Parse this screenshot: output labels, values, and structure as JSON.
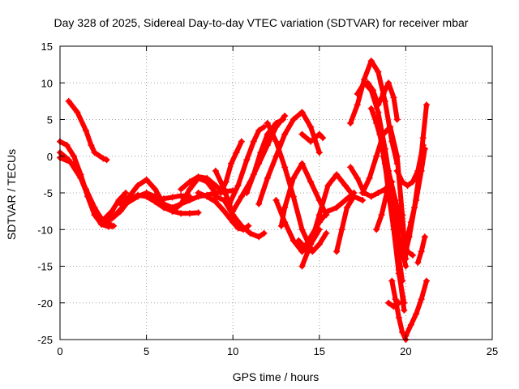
{
  "chart_data": {
    "type": "scatter",
    "title": "Day 328 of 2025, Sidereal Day-to-day VTEC variation (SDTVAR) for receiver mbar",
    "xlabel": "GPS time / hours",
    "ylabel": "SDTVAR / TECUs",
    "xlim": [
      0,
      25
    ],
    "ylim": [
      -25,
      15
    ],
    "xticks": [
      0,
      5,
      10,
      15,
      20,
      25
    ],
    "yticks": [
      -25,
      -20,
      -15,
      -10,
      -5,
      0,
      5,
      10,
      15
    ],
    "xtick_labels": [
      "0",
      "5",
      "10",
      "15",
      "20",
      "25"
    ],
    "ytick_labels": [
      "-25",
      "-20",
      "-15",
      "-10",
      "-5",
      "0",
      "5",
      "10",
      "15"
    ],
    "grid": true,
    "legend": "none",
    "color": "#ff0000",
    "marker": "plus",
    "series": [
      {
        "x": [
          0.5,
          1.0,
          1.5,
          1.8,
          2.0,
          2.5,
          2.7
        ],
        "y": [
          7.5,
          6.0,
          3.5,
          1.5,
          0.5,
          -0.3,
          -0.5
        ]
      },
      {
        "x": [
          0.0,
          0.4,
          0.8,
          1.2,
          1.6,
          2.0,
          2.4,
          2.8,
          3.1
        ],
        "y": [
          2.0,
          1.5,
          0.0,
          -2.5,
          -5.5,
          -8.0,
          -9.3,
          -9.6,
          -9.5
        ]
      },
      {
        "x": [
          0.0,
          0.5,
          1.0,
          1.5,
          2.0,
          2.5,
          3.0
        ],
        "y": [
          0.5,
          -0.5,
          -2.0,
          -4.5,
          -7.0,
          -9.0,
          -9.5
        ]
      },
      {
        "x": [
          0.0,
          0.6,
          1.2,
          1.8,
          2.4,
          2.8
        ],
        "y": [
          -0.2,
          -0.8,
          -3.0,
          -6.5,
          -8.5,
          -9.0
        ]
      },
      {
        "x": [
          2.6,
          3.0,
          3.5,
          4.0,
          4.5,
          5.0,
          5.5,
          6.0,
          6.5,
          7.0,
          7.5,
          8.0
        ],
        "y": [
          -8.5,
          -8.5,
          -7.5,
          -6.0,
          -5.3,
          -5.5,
          -6.2,
          -7.0,
          -7.5,
          -7.8,
          -7.8,
          -7.7
        ]
      },
      {
        "x": [
          2.0,
          2.5,
          3.0,
          3.4,
          3.8
        ],
        "y": [
          -8.0,
          -8.7,
          -7.5,
          -6.0,
          -5.0
        ]
      },
      {
        "x": [
          2.6,
          3.2,
          3.8,
          4.5,
          5.0,
          5.5,
          6.0,
          6.5,
          7.0
        ],
        "y": [
          -9.0,
          -8.0,
          -6.5,
          -5.5,
          -5.0,
          -5.5,
          -6.5,
          -7.0,
          -6.5
        ]
      },
      {
        "x": [
          3.5,
          4.0,
          4.5,
          5.0,
          5.5,
          6.0,
          6.5,
          7.0,
          7.5,
          8.0,
          8.5,
          9.0
        ],
        "y": [
          -6.5,
          -5.5,
          -4.0,
          -3.2,
          -4.5,
          -6.5,
          -7.5,
          -6.5,
          -4.5,
          -3.0,
          -3.5,
          -5.0
        ]
      },
      {
        "x": [
          6.5,
          7.0,
          7.5,
          8.0,
          8.5,
          9.0,
          9.5,
          10.0
        ],
        "y": [
          -7.5,
          -6.5,
          -6.0,
          -5.5,
          -5.3,
          -5.0,
          -4.8,
          -4.7
        ]
      },
      {
        "x": [
          5.5,
          6.0,
          6.5,
          7.0,
          7.5
        ],
        "y": [
          -6.0,
          -5.8,
          -5.6,
          -5.4,
          -5.5
        ]
      },
      {
        "x": [
          8.0,
          8.5,
          9.0,
          9.5,
          10.0,
          10.3,
          10.6,
          10.9
        ],
        "y": [
          -5.0,
          -5.5,
          -6.2,
          -7.5,
          -9.0,
          -9.8,
          -10.0,
          -9.5
        ]
      },
      {
        "x": [
          9.0,
          9.5,
          10.0,
          10.5,
          11.0,
          11.5,
          11.8
        ],
        "y": [
          -5.5,
          -6.0,
          -8.0,
          -9.5,
          -10.5,
          -11.0,
          -10.5
        ]
      },
      {
        "x": [
          9.0,
          9.5,
          10.0,
          10.4
        ],
        "y": [
          -2.0,
          -4.5,
          -8.0,
          -9.5
        ]
      },
      {
        "x": [
          9.3,
          9.6,
          9.9,
          10.2,
          10.5
        ],
        "y": [
          -5.0,
          -3.5,
          -1.0,
          0.5,
          2.0
        ]
      },
      {
        "x": [
          9.8,
          10.3,
          10.8,
          11.2,
          11.5,
          11.8
        ],
        "y": [
          -6.5,
          -4.0,
          -0.5,
          2.0,
          3.5,
          4.0
        ]
      },
      {
        "x": [
          10.8,
          11.2,
          11.6,
          12.0,
          12.5,
          12.9
        ],
        "y": [
          -5.0,
          -2.5,
          0.5,
          3.0,
          4.5,
          5.0
        ]
      },
      {
        "x": [
          11.5,
          12.0,
          12.5,
          13.0,
          13.5,
          14.0,
          14.5,
          15.0
        ],
        "y": [
          -6.5,
          -3.0,
          0.0,
          3.0,
          5.0,
          6.0,
          4.0,
          0.5
        ]
      },
      {
        "x": [
          10.0,
          10.5,
          11.0,
          11.5,
          12.0,
          12.5,
          13.0
        ],
        "y": [
          -7.5,
          -5.5,
          -3.5,
          -1.0,
          1.5,
          4.0,
          5.5
        ]
      },
      {
        "x": [
          12.0,
          12.5,
          13.0,
          13.5,
          14.0,
          14.5
        ],
        "y": [
          4.5,
          2.0,
          -1.5,
          -5.5,
          -10.0,
          -12.5
        ]
      },
      {
        "x": [
          12.8,
          13.0,
          13.5,
          14.0,
          14.5,
          15.0,
          15.4
        ],
        "y": [
          -9.5,
          -7.0,
          -3.0,
          -1.0,
          -3.5,
          -6.0,
          -8.0
        ]
      },
      {
        "x": [
          12.5,
          13.0,
          13.5,
          14.0,
          14.5,
          15.0
        ],
        "y": [
          -6.0,
          -9.0,
          -11.5,
          -13.0,
          -12.0,
          -10.0
        ]
      },
      {
        "x": [
          13.8,
          14.2,
          14.6,
          15.0,
          15.4
        ],
        "y": [
          -11.5,
          -12.5,
          -13.0,
          -12.0,
          -10.5
        ]
      },
      {
        "x": [
          14.0,
          14.5,
          15.0,
          15.5,
          16.0,
          16.5,
          17.0
        ],
        "y": [
          -13.0,
          -11.0,
          -9.0,
          -7.5,
          -7.0,
          -6.0,
          -5.0
        ]
      },
      {
        "x": [
          14.0,
          14.5,
          15.0,
          15.2
        ],
        "y": [
          3.0,
          2.0,
          3.0,
          2.5
        ]
      },
      {
        "x": [
          14.0,
          14.5,
          15.0,
          15.5,
          16.0,
          16.5,
          17.0,
          17.5
        ],
        "y": [
          -15.0,
          -12.0,
          -8.0,
          -4.0,
          -2.5,
          -4.0,
          -5.5,
          -6.0
        ]
      },
      {
        "x": [
          16.0,
          16.3,
          16.6,
          17.0
        ],
        "y": [
          -13.0,
          -10.0,
          -7.0,
          -5.5
        ]
      },
      {
        "x": [
          16.8,
          17.2,
          17.6,
          18.0,
          18.4,
          18.8,
          19.2
        ],
        "y": [
          -1.5,
          -3.0,
          -5.0,
          -5.5,
          -5.0,
          -4.5,
          -3.5
        ]
      },
      {
        "x": [
          16.8,
          17.2,
          17.6,
          18.0,
          18.4,
          18.8,
          19.2,
          19.5
        ],
        "y": [
          4.5,
          7.0,
          10.5,
          13.0,
          11.5,
          7.5,
          2.0,
          -1.0
        ]
      },
      {
        "x": [
          17.8,
          18.1,
          18.4,
          18.7,
          19.0,
          19.3,
          19.5
        ],
        "y": [
          10.0,
          9.0,
          7.0,
          8.5,
          10.0,
          8.0,
          5.0
        ]
      },
      {
        "x": [
          17.2,
          17.6,
          18.0,
          18.4,
          18.8,
          19.2,
          19.6,
          20.0
        ],
        "y": [
          8.5,
          10.0,
          9.0,
          6.0,
          1.0,
          -5.0,
          -11.0,
          -15.0
        ]
      },
      {
        "x": [
          17.5,
          17.9,
          18.3,
          18.7,
          19.1,
          19.5,
          19.8,
          20.0
        ],
        "y": [
          -5.0,
          -3.0,
          0.0,
          3.0,
          4.0,
          0.0,
          -8.0,
          -14.0
        ]
      },
      {
        "x": [
          18.0,
          18.3,
          18.6,
          19.0,
          19.4,
          19.8,
          20.1,
          20.4
        ],
        "y": [
          6.5,
          4.5,
          2.0,
          -2.0,
          -6.0,
          -10.0,
          -13.0,
          -13.5
        ]
      },
      {
        "x": [
          18.3,
          18.6,
          18.9,
          19.2,
          19.5,
          19.8
        ],
        "y": [
          -10.0,
          -8.0,
          -5.0,
          -6.0,
          -12.0,
          -17.0
        ]
      },
      {
        "x": [
          18.5,
          18.8,
          19.0,
          19.3,
          19.6,
          19.9
        ],
        "y": [
          3.0,
          -1.0,
          -5.0,
          -10.0,
          -16.0,
          -20.0
        ]
      },
      {
        "x": [
          18.7,
          19.0,
          19.3,
          19.6,
          19.9
        ],
        "y": [
          0.0,
          -4.0,
          -9.5,
          -15.5,
          -21.0
        ]
      },
      {
        "x": [
          19.0,
          19.3,
          19.6
        ],
        "y": [
          -20.0,
          -20.5,
          -20.0
        ]
      },
      {
        "x": [
          19.2,
          19.4,
          19.6,
          19.8,
          20.0
        ],
        "y": [
          -17.0,
          -19.5,
          -22.0,
          -24.0,
          -25.0
        ]
      },
      {
        "x": [
          19.5,
          19.8,
          20.1,
          20.4,
          20.7,
          21.0
        ],
        "y": [
          -2.0,
          -3.5,
          -4.0,
          -3.5,
          -2.0,
          1.5
        ]
      },
      {
        "x": [
          19.7,
          20.0,
          20.3,
          20.6,
          20.9,
          21.1
        ],
        "y": [
          -13.5,
          -12.0,
          -9.0,
          -6.0,
          -2.0,
          1.0
        ]
      },
      {
        "x": [
          19.9,
          20.2,
          20.5,
          20.8,
          21.0,
          21.2
        ],
        "y": [
          -14.0,
          -11.0,
          -7.0,
          -2.0,
          2.5,
          7.0
        ]
      },
      {
        "x": [
          20.0,
          20.3,
          20.6,
          20.9,
          21.2
        ],
        "y": [
          -24.5,
          -23.0,
          -21.5,
          -19.5,
          -17.0
        ]
      },
      {
        "x": [
          20.7,
          20.9,
          21.1
        ],
        "y": [
          -14.5,
          -13.0,
          -11.0
        ]
      },
      {
        "x": [
          7.0,
          7.5,
          8.0,
          8.5,
          9.0,
          9.5
        ],
        "y": [
          -4.5,
          -3.5,
          -2.8,
          -3.0,
          -4.0,
          -5.0
        ]
      }
    ]
  }
}
